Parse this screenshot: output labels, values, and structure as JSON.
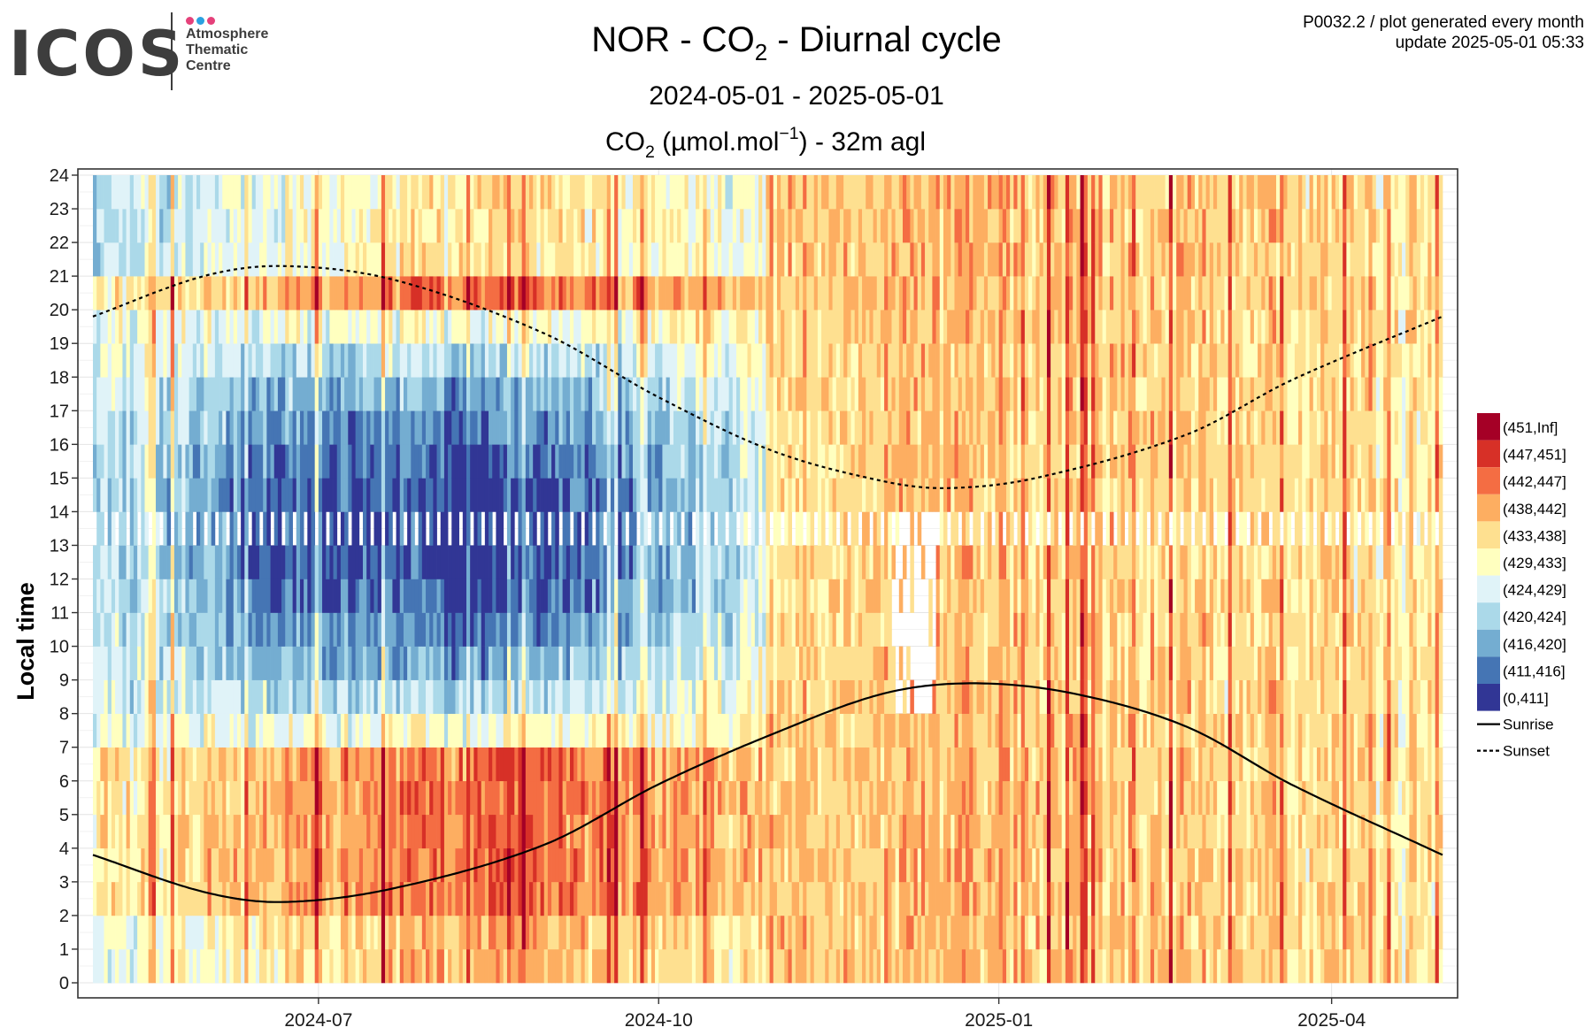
{
  "logo": {
    "word": "ICOS",
    "lines": [
      "Atmosphere",
      "Thematic",
      "Centre"
    ],
    "dot_colors": [
      "#e5417a",
      "#2aa1e0",
      "#e5417a"
    ]
  },
  "header": {
    "product_line": "P0032.2 / plot generated every month",
    "update_line": "update  2025-05-01 05:33"
  },
  "chart_data": {
    "type": "heatmap",
    "title_parts": [
      "NOR - CO",
      "2",
      " - Diurnal cycle"
    ],
    "date_range": "2024-05-01 - 2025-05-01",
    "subtitle_parts": [
      "CO",
      "2",
      " (µmol.mol",
      "−1",
      ") - 32m agl"
    ],
    "ylabel": "Local time",
    "xlabel": "",
    "x_range": [
      "2024-05-01",
      "2025-05-01"
    ],
    "y_range": [
      0,
      24
    ],
    "x_ticks": [
      "2024-07",
      "2024-10",
      "2025-01",
      "2025-04"
    ],
    "y_ticks": [
      0,
      1,
      2,
      3,
      4,
      5,
      6,
      7,
      8,
      9,
      10,
      11,
      12,
      13,
      14,
      15,
      16,
      17,
      18,
      19,
      20,
      21,
      22,
      23,
      24
    ],
    "grid": true,
    "legend_position": "right",
    "bins": [
      {
        "label": "(451,Inf]",
        "color": "#a50026"
      },
      {
        "label": "(447,451]",
        "color": "#d73027"
      },
      {
        "label": "(442,447]",
        "color": "#f46d43"
      },
      {
        "label": "(438,442]",
        "color": "#fdae61"
      },
      {
        "label": "(433,438]",
        "color": "#fee090"
      },
      {
        "label": "(429,433]",
        "color": "#ffffbf"
      },
      {
        "label": "(424,429]",
        "color": "#e0f3f8"
      },
      {
        "label": "(420,424]",
        "color": "#abd9e9"
      },
      {
        "label": "(416,420]",
        "color": "#74add1"
      },
      {
        "label": "(411,416]",
        "color": "#4575b4"
      },
      {
        "label": "(0,411]",
        "color": "#313695"
      }
    ],
    "lines": [
      {
        "name": "Sunrise",
        "style": "solid",
        "points": [
          [
            "2024-05-01",
            3.8
          ],
          [
            "2024-05-31",
            2.7
          ],
          [
            "2024-06-21",
            2.4
          ],
          [
            "2024-07-21",
            2.8
          ],
          [
            "2024-08-31",
            4.1
          ],
          [
            "2024-10-01",
            5.9
          ],
          [
            "2024-11-01",
            7.4
          ],
          [
            "2024-12-01",
            8.6
          ],
          [
            "2024-12-25",
            8.9
          ],
          [
            "2025-01-21",
            8.6
          ],
          [
            "2025-02-21",
            7.6
          ],
          [
            "2025-03-21",
            5.9
          ],
          [
            "2025-05-01",
            3.8
          ]
        ]
      },
      {
        "name": "Sunset",
        "style": "dashed",
        "points": [
          [
            "2024-05-01",
            19.8
          ],
          [
            "2024-05-31",
            21.0
          ],
          [
            "2024-06-21",
            21.3
          ],
          [
            "2024-07-21",
            20.9
          ],
          [
            "2024-08-31",
            19.3
          ],
          [
            "2024-10-01",
            17.4
          ],
          [
            "2024-11-01",
            15.8
          ],
          [
            "2024-12-01",
            14.9
          ],
          [
            "2024-12-18",
            14.7
          ],
          [
            "2025-01-11",
            15.0
          ],
          [
            "2025-02-21",
            16.3
          ],
          [
            "2025-03-21",
            17.9
          ],
          [
            "2025-05-01",
            19.8
          ]
        ]
      }
    ],
    "data_gap_hours": [
      13,
      14
    ],
    "seasonal_profile_bin_index": [
      {
        "month": "2024-05",
        "night": 4.5,
        "midday": 7.0
      },
      {
        "month": "2024-06",
        "night": 3.0,
        "midday": 9.0
      },
      {
        "month": "2024-07",
        "night": 2.5,
        "midday": 9.5
      },
      {
        "month": "2024-08",
        "night": 2.0,
        "midday": 10.5
      },
      {
        "month": "2024-09",
        "night": 2.5,
        "midday": 9.0
      },
      {
        "month": "2024-10",
        "night": 3.2,
        "midday": 7.3
      },
      {
        "month": "2024-11",
        "night": 3.6,
        "midday": 4.6
      },
      {
        "month": "2024-12",
        "night": 3.5,
        "midday": 4.0
      },
      {
        "month": "2025-01",
        "night": 3.6,
        "midday": 4.1
      },
      {
        "month": "2025-02",
        "night": 3.7,
        "midday": 4.1
      },
      {
        "month": "2025-03",
        "night": 3.9,
        "midday": 4.3
      },
      {
        "month": "2025-04",
        "night": 4.3,
        "midday": 4.7
      }
    ]
  }
}
